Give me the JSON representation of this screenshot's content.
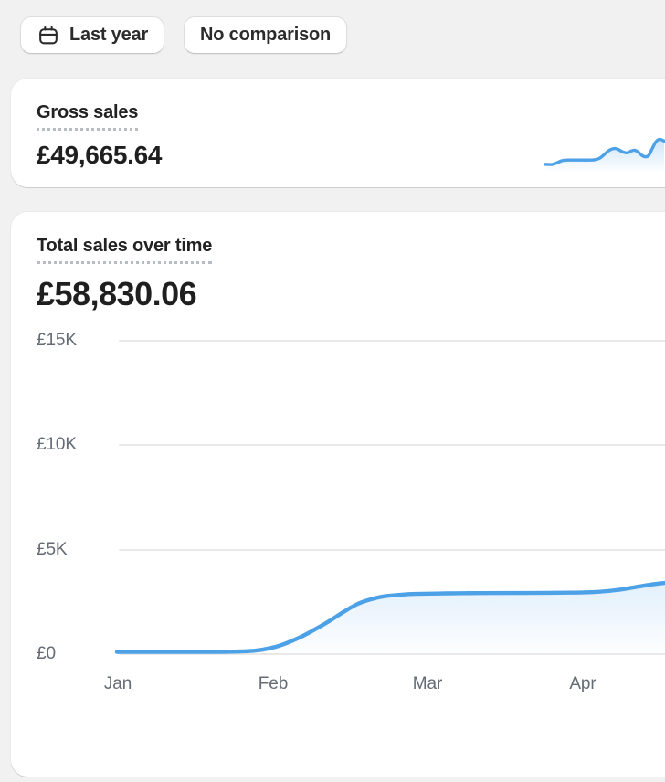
{
  "page": {
    "background": "#f1f1f1"
  },
  "toolbar": {
    "date_button": {
      "label": "Last year",
      "icon": "calendar-icon"
    },
    "comparison_button": {
      "label": "No comparison"
    }
  },
  "cards": {
    "gross_sales": {
      "title": "Gross sales",
      "value": "£49,665.64"
    },
    "total_sales": {
      "title": "Total sales over time",
      "value": "£58,830.06"
    }
  },
  "axes": {
    "y": [
      "£15K",
      "£10K",
      "£5K",
      "£0"
    ],
    "x": [
      "Jan",
      "Feb",
      "Mar",
      "Apr"
    ]
  },
  "colors": {
    "chart_line": "#4DA1E6",
    "chart_fill_top": "rgba(77,161,230,0.18)",
    "chart_fill_bottom": "rgba(77,161,230,0.01)",
    "grid": "#e9e9e9",
    "axis_text": "#646b75",
    "text_primary": "#1f1f1f",
    "card_background": "#ffffff",
    "page_background": "#f1f1f1"
  },
  "chart_data": [
    {
      "type": "area",
      "title": "Total sales over time",
      "currency": "GBP",
      "total_value_label": "£58,830.06",
      "x_ticks": [
        "Jan",
        "Feb",
        "Mar",
        "Apr"
      ],
      "y_ticks": [
        "£0",
        "£5K",
        "£10K",
        "£15K"
      ],
      "ylim": [
        0,
        15000
      ],
      "grid": "horizontal",
      "legend": "none",
      "series": [
        {
          "name": "Total sales",
          "points_x_fraction_value": [
            [
              0,
              60
            ],
            [
              0.08,
              60
            ],
            [
              0.16,
              62
            ],
            [
              0.21,
              75
            ],
            [
              0.25,
              120
            ],
            [
              0.278,
              230
            ],
            [
              0.303,
              420
            ],
            [
              0.337,
              800
            ],
            [
              0.362,
              1150
            ],
            [
              0.387,
              1530
            ],
            [
              0.412,
              1950
            ],
            [
              0.437,
              2330
            ],
            [
              0.462,
              2570
            ],
            [
              0.487,
              2720
            ],
            [
              0.52,
              2805
            ],
            [
              0.545,
              2840
            ],
            [
              0.6,
              2865
            ],
            [
              0.66,
              2880
            ],
            [
              0.72,
              2885
            ],
            [
              0.78,
              2890
            ],
            [
              0.83,
              2900
            ],
            [
              0.87,
              2925
            ],
            [
              0.91,
              3020
            ],
            [
              0.945,
              3160
            ],
            [
              0.975,
              3290
            ],
            [
              1,
              3370
            ]
          ]
        }
      ]
    },
    {
      "type": "sparkline-area",
      "title": "Gross sales",
      "total_value_label": "£49,665.64",
      "series": [
        {
          "name": "Gross sales",
          "points_x_fraction_height": [
            [
              0,
              0.17
            ],
            [
              0.06,
              0.17
            ],
            [
              0.1,
              0.22
            ],
            [
              0.14,
              0.28
            ],
            [
              0.19,
              0.3
            ],
            [
              0.28,
              0.3
            ],
            [
              0.36,
              0.3
            ],
            [
              0.42,
              0.31
            ],
            [
              0.46,
              0.36
            ],
            [
              0.5,
              0.48
            ],
            [
              0.54,
              0.6
            ],
            [
              0.58,
              0.65
            ],
            [
              0.61,
              0.63
            ],
            [
              0.65,
              0.55
            ],
            [
              0.69,
              0.52
            ],
            [
              0.72,
              0.57
            ],
            [
              0.75,
              0.6
            ],
            [
              0.78,
              0.55
            ],
            [
              0.81,
              0.45
            ],
            [
              0.84,
              0.4
            ],
            [
              0.87,
              0.44
            ],
            [
              0.9,
              0.65
            ],
            [
              0.93,
              0.85
            ],
            [
              0.96,
              0.93
            ],
            [
              1,
              0.88
            ]
          ]
        }
      ]
    }
  ]
}
